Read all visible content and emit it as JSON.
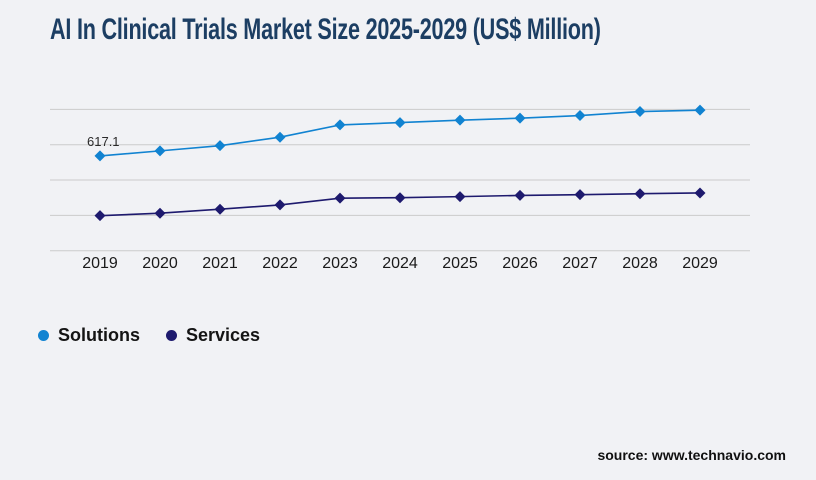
{
  "title": "AI In Clinical Trials Market Size 2025-2029 (US$ Million)",
  "source": "source: www.technavio.com",
  "colors": {
    "background": "#f1f2f5",
    "title": "#1c3e63",
    "grid": "#cbcbcb",
    "tick_text": "#1a1a1a",
    "solutions": "#1183d1",
    "services": "#1e1a6e"
  },
  "legend": {
    "items": [
      {
        "label": "Solutions",
        "color": "#1183d1"
      },
      {
        "label": "Services",
        "color": "#1e1a6e"
      }
    ]
  },
  "chart_data": {
    "type": "line",
    "title": "AI In Clinical Trials Market Size 2025-2029 (US$ Million)",
    "x": [
      "2019",
      "2020",
      "2021",
      "2022",
      "2023",
      "2024",
      "2025",
      "2026",
      "2027",
      "2028",
      "2029"
    ],
    "series": [
      {
        "name": "Solutions",
        "color": "#1183d1",
        "marker": "diamond",
        "values": [
          617.1,
          650,
          684,
          739,
          819,
          834,
          850,
          863,
          880,
          906,
          915
        ]
      },
      {
        "name": "Services",
        "color": "#1e1a6e",
        "marker": "diamond",
        "values": [
          228,
          244,
          270,
          298,
          342,
          345,
          352,
          360,
          365,
          371,
          376
        ]
      }
    ],
    "ylim": [
      0,
      920
    ],
    "gridline_count": 5,
    "grid": true,
    "y_axis_labels_visible": false,
    "legend_position": "bottom-left",
    "annotation": {
      "series": "Solutions",
      "x": "2019",
      "label": "617.1"
    }
  }
}
